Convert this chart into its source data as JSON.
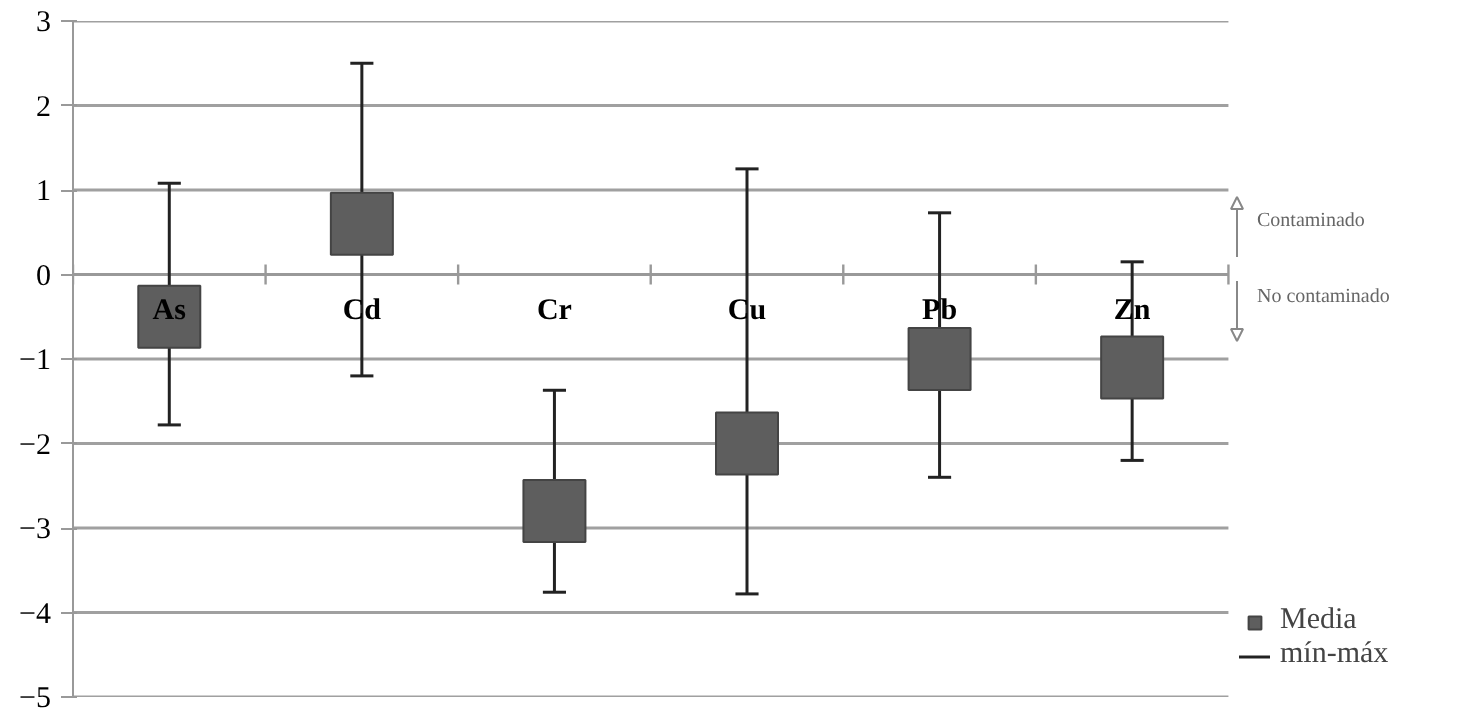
{
  "chart_data": {
    "type": "scatter",
    "marker": "square",
    "categories": [
      "As",
      "Cd",
      "Cr",
      "Cu",
      "Pb",
      "Zn"
    ],
    "series": [
      {
        "name": "Media",
        "color": "#5e5e5e",
        "values": [
          -0.5,
          0.6,
          -2.8,
          -2.0,
          -1.0,
          -1.1
        ],
        "errors": [
          [
            -1.78,
            1.08
          ],
          [
            -1.2,
            2.5
          ],
          [
            -3.76,
            -1.37
          ],
          [
            -3.78,
            1.25
          ],
          [
            -2.4,
            0.73
          ],
          [
            -2.2,
            0.15
          ]
        ]
      }
    ],
    "ylim": [
      -5,
      3
    ],
    "yticks": [
      -5,
      -4,
      -3,
      -2,
      -1,
      0,
      1,
      2,
      3
    ],
    "grid": "y",
    "legend": "bottom right",
    "annotations": [
      "Contaminado",
      "No contaminado",
      "mín-máx"
    ]
  }
}
